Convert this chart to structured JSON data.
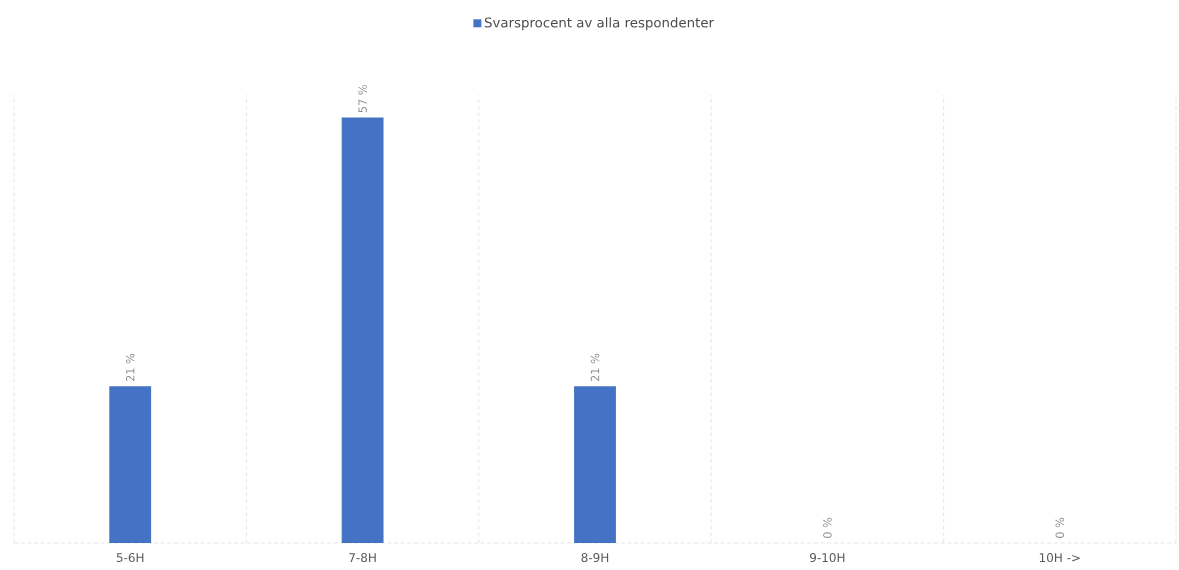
{
  "chart_data": {
    "type": "bar",
    "categories": [
      "5-6H",
      "7-8H",
      "8-9H",
      "9-10H",
      "10H ->"
    ],
    "series": [
      {
        "name": "Svarsprocent av alla respondenter",
        "color": "#4472c4",
        "values": [
          21,
          57,
          21,
          0,
          0
        ],
        "value_labels": [
          "21 %",
          "57 %",
          "21 %",
          "0 %",
          "0 %"
        ]
      }
    ],
    "ylim": [
      0,
      60
    ],
    "grid": "x",
    "legend": "top",
    "tick_labels": "x"
  }
}
